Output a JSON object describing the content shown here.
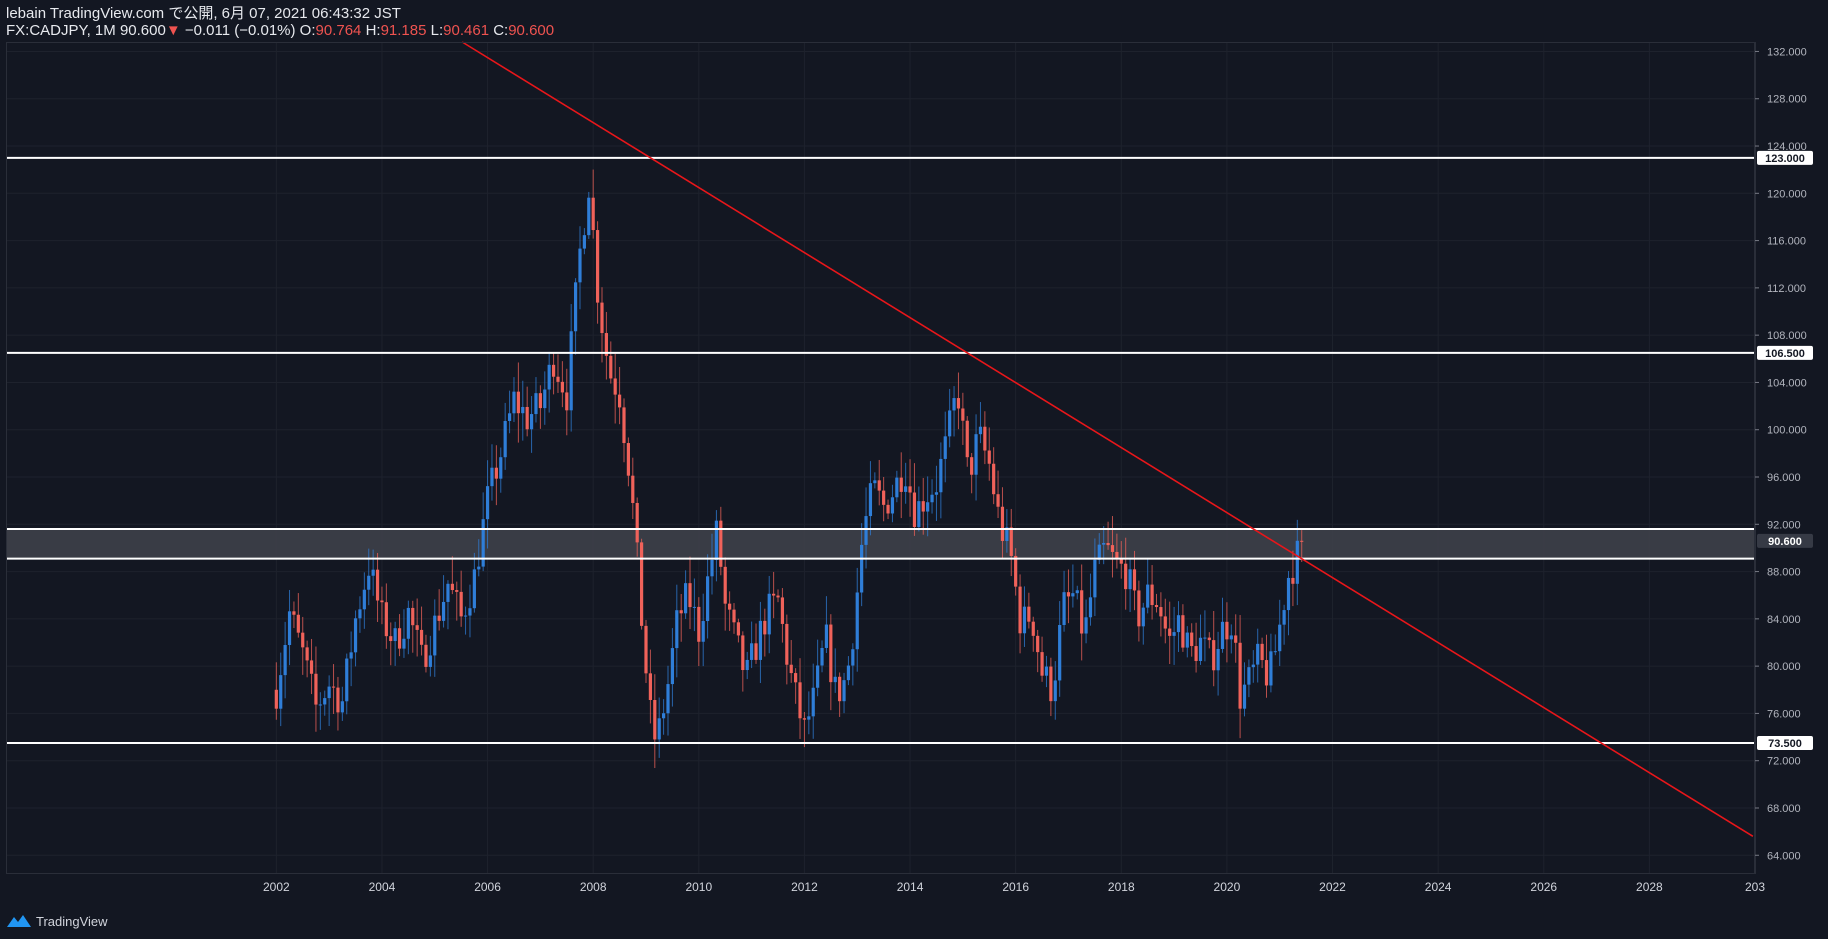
{
  "header": {
    "published": "lebain TradingView.com で公開, 6月 07, 2021 06:43:32 JST",
    "symbol": "FX:CADJPY, 1M",
    "last": "90.600",
    "arrow": "▼",
    "change": "−0.011 (−0.01%)",
    "o_label": "O:",
    "o_value": "90.764",
    "h_label": "H:",
    "h_value": "91.185",
    "l_label": "L:",
    "l_value": "90.461",
    "c_label": "C:",
    "c_value": "90.600"
  },
  "footer": {
    "brand": "TradingView",
    "logo_icon": "tradingview-logo-icon"
  },
  "chart_data": {
    "type": "candlestick",
    "symbol": "FX:CADJPY",
    "interval": "1M",
    "ylim": [
      62.5,
      132.8
    ],
    "xlim": [
      1996.9,
      2030.0
    ],
    "y_ticks": [
      "64.000",
      "68.000",
      "72.000",
      "76.000",
      "80.000",
      "84.000",
      "88.000",
      "92.000",
      "96.000",
      "100.000",
      "104.000",
      "108.000",
      "112.000",
      "116.000",
      "120.000",
      "124.000",
      "128.000",
      "132.000"
    ],
    "x_ticks": [
      "2002",
      "2004",
      "2006",
      "2008",
      "2010",
      "2012",
      "2014",
      "2016",
      "2018",
      "2020",
      "2022",
      "2024",
      "2026",
      "2028",
      "203"
    ],
    "horizontal_levels": [
      {
        "label": "123.000",
        "value": 123.0
      },
      {
        "label": "106.500",
        "value": 106.5
      },
      {
        "label": "73.500",
        "value": 73.5
      }
    ],
    "zone": {
      "top": 91.6,
      "bottom": 89.1
    },
    "last_price": {
      "label": "90.600",
      "value": 90.6
    },
    "trendline": {
      "x1": 2005.52,
      "y1": 132.8,
      "x2": 2029.96,
      "y2": 65.6,
      "color": "#e8161a"
    },
    "colors": {
      "up": "#2f7ed8",
      "down": "#f0625a",
      "level": "#ffffff",
      "grid": "#1e222d",
      "background": "#131722"
    },
    "anchors": [
      [
        2002.0,
        78.0
      ],
      [
        2002.25,
        84.5
      ],
      [
        2002.5,
        81.0
      ],
      [
        2002.75,
        76.5
      ],
      [
        2003.0,
        78.5
      ],
      [
        2003.25,
        77.0
      ],
      [
        2003.5,
        84.0
      ],
      [
        2003.75,
        88.5
      ],
      [
        2004.0,
        84.0
      ],
      [
        2004.25,
        82.0
      ],
      [
        2004.5,
        84.5
      ],
      [
        2004.75,
        80.5
      ],
      [
        2005.0,
        83.5
      ],
      [
        2005.25,
        87.0
      ],
      [
        2005.5,
        84.0
      ],
      [
        2005.75,
        87.5
      ],
      [
        2006.0,
        94.0
      ],
      [
        2006.25,
        98.0
      ],
      [
        2006.5,
        102.5
      ],
      [
        2006.75,
        101.0
      ],
      [
        2007.0,
        102.0
      ],
      [
        2007.25,
        106.0
      ],
      [
        2007.5,
        103.0
      ],
      [
        2007.75,
        115.0
      ],
      [
        2007.92,
        121.0
      ],
      [
        2008.1,
        111.0
      ],
      [
        2008.3,
        105.0
      ],
      [
        2008.5,
        103.0
      ],
      [
        2008.7,
        96.0
      ],
      [
        2008.85,
        88.0
      ],
      [
        2008.95,
        82.0
      ],
      [
        2009.1,
        75.0
      ],
      [
        2009.2,
        73.5
      ],
      [
        2009.4,
        78.0
      ],
      [
        2009.6,
        84.0
      ],
      [
        2009.8,
        86.0
      ],
      [
        2010.0,
        83.0
      ],
      [
        2010.2,
        88.0
      ],
      [
        2010.35,
        91.5
      ],
      [
        2010.5,
        85.0
      ],
      [
        2010.7,
        82.0
      ],
      [
        2010.9,
        79.0
      ],
      [
        2011.1,
        82.0
      ],
      [
        2011.3,
        84.5
      ],
      [
        2011.5,
        85.5
      ],
      [
        2011.7,
        80.0
      ],
      [
        2011.85,
        77.0
      ],
      [
        2012.0,
        74.5
      ],
      [
        2012.2,
        77.5
      ],
      [
        2012.4,
        82.5
      ],
      [
        2012.6,
        77.5
      ],
      [
        2012.8,
        79.0
      ],
      [
        2012.95,
        84.0
      ],
      [
        2013.1,
        91.0
      ],
      [
        2013.3,
        95.0
      ],
      [
        2013.5,
        93.5
      ],
      [
        2013.7,
        95.0
      ],
      [
        2013.9,
        97.0
      ],
      [
        2014.1,
        93.0
      ],
      [
        2014.3,
        94.5
      ],
      [
        2014.5,
        95.5
      ],
      [
        2014.7,
        99.0
      ],
      [
        2014.9,
        103.5
      ],
      [
        2015.1,
        96.0
      ],
      [
        2015.3,
        99.5
      ],
      [
        2015.5,
        97.0
      ],
      [
        2015.7,
        92.0
      ],
      [
        2015.9,
        89.5
      ],
      [
        2016.1,
        83.5
      ],
      [
        2016.3,
        84.5
      ],
      [
        2016.5,
        79.5
      ],
      [
        2016.7,
        78.0
      ],
      [
        2016.9,
        85.0
      ],
      [
        2017.1,
        86.0
      ],
      [
        2017.3,
        82.5
      ],
      [
        2017.5,
        88.0
      ],
      [
        2017.7,
        90.0
      ],
      [
        2017.9,
        88.5
      ],
      [
        2018.1,
        88.0
      ],
      [
        2018.3,
        84.0
      ],
      [
        2018.5,
        86.0
      ],
      [
        2018.7,
        85.5
      ],
      [
        2018.9,
        82.0
      ],
      [
        2019.1,
        84.0
      ],
      [
        2019.3,
        81.0
      ],
      [
        2019.5,
        82.0
      ],
      [
        2019.7,
        80.5
      ],
      [
        2019.9,
        83.0
      ],
      [
        2020.1,
        84.0
      ],
      [
        2020.25,
        77.5
      ],
      [
        2020.4,
        78.5
      ],
      [
        2020.6,
        80.5
      ],
      [
        2020.8,
        79.0
      ],
      [
        2020.95,
        82.0
      ],
      [
        2021.15,
        87.5
      ],
      [
        2021.3,
        89.0
      ],
      [
        2021.45,
        90.6
      ]
    ]
  }
}
